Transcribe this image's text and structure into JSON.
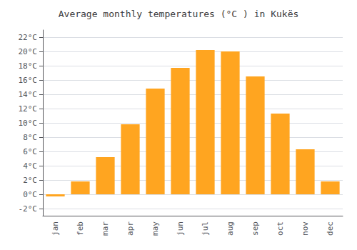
{
  "chart_data": {
    "type": "bar",
    "title": "Average monthly temperatures (°C ) in Kukës",
    "categories": [
      "jan",
      "feb",
      "mar",
      "apr",
      "may",
      "jun",
      "jul",
      "aug",
      "sep",
      "oct",
      "nov",
      "dec"
    ],
    "values": [
      -0.3,
      1.8,
      5.2,
      9.8,
      14.8,
      17.7,
      20.2,
      20.0,
      16.5,
      11.3,
      6.3,
      1.8
    ],
    "color": "#FFA520",
    "ylim": [
      -3,
      23
    ],
    "yticks": [
      {
        "value": -2,
        "label": "-2°C"
      },
      {
        "value": 0,
        "label": "0°C"
      },
      {
        "value": 2,
        "label": "2°C"
      },
      {
        "value": 4,
        "label": "4°C"
      },
      {
        "value": 6,
        "label": "6°C"
      },
      {
        "value": 8,
        "label": "8°C"
      },
      {
        "value": 10,
        "label": "10°C"
      },
      {
        "value": 12,
        "label": "12°C"
      },
      {
        "value": 14,
        "label": "14°C"
      },
      {
        "value": 16,
        "label": "16°C"
      },
      {
        "value": 18,
        "label": "18°C"
      },
      {
        "value": 20,
        "label": "20°C"
      },
      {
        "value": 22,
        "label": "22°C"
      }
    ],
    "grid": true
  }
}
